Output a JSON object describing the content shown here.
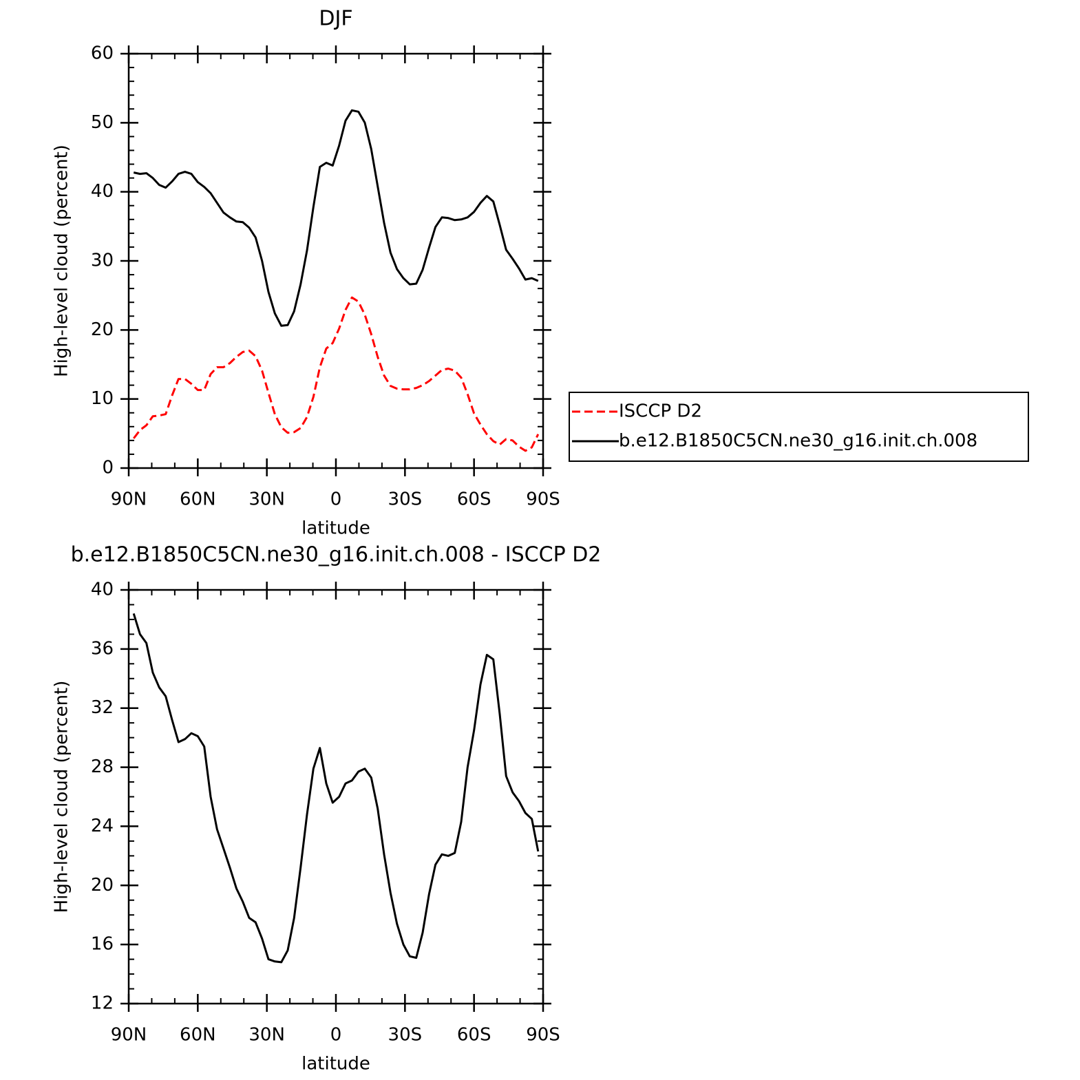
{
  "chart_data": [
    {
      "type": "line",
      "title": "DJF",
      "xlabel": "latitude",
      "ylabel": "High-level cloud (percent)",
      "x": [
        87.86,
        85.1,
        82.31,
        79.53,
        76.74,
        73.95,
        71.16,
        68.37,
        65.58,
        62.79,
        60.0,
        57.21,
        54.42,
        51.63,
        48.84,
        46.04,
        43.25,
        40.46,
        37.67,
        34.88,
        32.09,
        29.3,
        26.51,
        23.72,
        20.93,
        18.14,
        15.35,
        12.56,
        9.77,
        6.98,
        4.19,
        1.4,
        -1.4,
        -4.19,
        -6.98,
        -9.77,
        -12.56,
        -15.35,
        -18.14,
        -20.93,
        -23.72,
        -26.51,
        -29.3,
        -32.09,
        -34.88,
        -37.67,
        -40.46,
        -43.25,
        -46.04,
        -48.84,
        -51.63,
        -54.42,
        -57.21,
        -60.0,
        -62.79,
        -65.58,
        -68.37,
        -71.16,
        -73.95,
        -76.74,
        -79.53,
        -82.31,
        -85.1,
        -87.86
      ],
      "series": [
        {
          "name": "ISCCP D2",
          "color": "#ff0000",
          "dash": true,
          "values": [
            4.3,
            5.5,
            6.2,
            7.5,
            7.6,
            7.8,
            10.5,
            12.9,
            12.9,
            12.2,
            11.3,
            11.3,
            13.6,
            14.6,
            14.6,
            15.2,
            16.1,
            16.8,
            17.0,
            16.2,
            14.1,
            10.9,
            7.8,
            5.9,
            5.1,
            5.2,
            5.8,
            7.4,
            10.3,
            14.6,
            17.3,
            18.1,
            20.2,
            22.9,
            24.7,
            24.1,
            22.2,
            19.4,
            16.1,
            13.4,
            11.9,
            11.5,
            11.4,
            11.4,
            11.6,
            12.0,
            12.6,
            13.4,
            14.2,
            14.4,
            14.1,
            13.1,
            10.7,
            7.9,
            6.3,
            4.9,
            3.9,
            3.4,
            4.2,
            4.0,
            3.1,
            2.5,
            3.0,
            4.9
          ]
        },
        {
          "name": "b.e12.B1850C5CN.ne30_g16.init.ch.008",
          "color": "#000000",
          "dash": false,
          "values": [
            42.8,
            42.6,
            42.7,
            42.0,
            41.0,
            40.6,
            41.5,
            42.6,
            42.9,
            42.6,
            41.4,
            40.7,
            39.8,
            38.4,
            37.0,
            36.3,
            35.7,
            35.6,
            34.8,
            33.4,
            30.0,
            25.5,
            22.4,
            20.6,
            20.7,
            22.7,
            26.6,
            31.5,
            37.8,
            43.6,
            44.2,
            43.8,
            46.7,
            50.3,
            51.8,
            51.6,
            50.0,
            46.2,
            40.8,
            35.5,
            31.2,
            28.8,
            27.5,
            26.6,
            26.7,
            28.7,
            31.9,
            34.9,
            36.3,
            36.2,
            35.9,
            36.0,
            36.3,
            37.1,
            38.4,
            39.4,
            38.6,
            35.2,
            31.6,
            30.3,
            28.9,
            27.3,
            27.5,
            27.1
          ]
        }
      ],
      "xlim": [
        90,
        -90
      ],
      "xticks": [
        {
          "value": 90,
          "label": "90N"
        },
        {
          "value": 60,
          "label": "60N"
        },
        {
          "value": 30,
          "label": "30N"
        },
        0,
        {
          "value": -30,
          "label": "30S"
        },
        {
          "value": -60,
          "label": "60S"
        },
        {
          "value": -90,
          "label": "90S"
        }
      ],
      "ylim": [
        0,
        60
      ],
      "yticks": [
        0,
        10,
        20,
        30,
        40,
        50,
        60
      ],
      "legend": "right"
    },
    {
      "type": "line",
      "title": "b.e12.B1850C5CN.ne30_g16.init.ch.008 - ISCCP D2",
      "xlabel": "latitude",
      "ylabel": "High-level cloud (percent)",
      "x": [
        87.86,
        85.1,
        82.31,
        79.53,
        76.74,
        73.95,
        71.16,
        68.37,
        65.58,
        62.79,
        60.0,
        57.21,
        54.42,
        51.63,
        48.84,
        46.04,
        43.25,
        40.46,
        37.67,
        34.88,
        32.09,
        29.3,
        26.51,
        23.72,
        20.93,
        18.14,
        15.35,
        12.56,
        9.77,
        6.98,
        4.19,
        1.4,
        -1.4,
        -4.19,
        -6.98,
        -9.77,
        -12.56,
        -15.35,
        -18.14,
        -20.93,
        -23.72,
        -26.51,
        -29.3,
        -32.09,
        -34.88,
        -37.67,
        -40.46,
        -43.25,
        -46.04,
        -48.84,
        -51.63,
        -54.42,
        -57.21,
        -60.0,
        -62.79,
        -65.58,
        -68.37,
        -71.16,
        -73.95,
        -76.74,
        -79.53,
        -82.31,
        -85.1,
        -87.86
      ],
      "series": [
        {
          "color": "#000000",
          "dash": false,
          "values": [
            38.4,
            37.0,
            36.4,
            34.4,
            33.4,
            32.8,
            31.2,
            29.7,
            29.9,
            30.3,
            30.1,
            29.4,
            26.0,
            23.8,
            22.5,
            21.2,
            19.8,
            18.9,
            17.8,
            17.5,
            16.4,
            15.0,
            14.85,
            14.8,
            15.6,
            17.8,
            21.2,
            24.8,
            27.9,
            29.3,
            26.9,
            25.6,
            26.0,
            26.9,
            27.1,
            27.7,
            27.9,
            27.3,
            25.2,
            22.1,
            19.5,
            17.4,
            16.0,
            15.2,
            15.1,
            16.8,
            19.4,
            21.4,
            22.1,
            22.0,
            22.2,
            24.3,
            28.0,
            30.5,
            33.6,
            35.6,
            35.3,
            31.6,
            27.4,
            26.3,
            25.7,
            24.9,
            24.5,
            22.3
          ]
        }
      ],
      "xlim": [
        90,
        -90
      ],
      "xticks": [
        {
          "value": 90,
          "label": "90N"
        },
        {
          "value": 60,
          "label": "60N"
        },
        {
          "value": 30,
          "label": "30N"
        },
        0,
        {
          "value": -30,
          "label": "30S"
        },
        {
          "value": -60,
          "label": "60S"
        },
        {
          "value": -90,
          "label": "90S"
        }
      ],
      "ylim": [
        12,
        40
      ],
      "yticks": [
        12,
        16,
        20,
        24,
        28,
        32,
        36,
        40
      ]
    }
  ]
}
